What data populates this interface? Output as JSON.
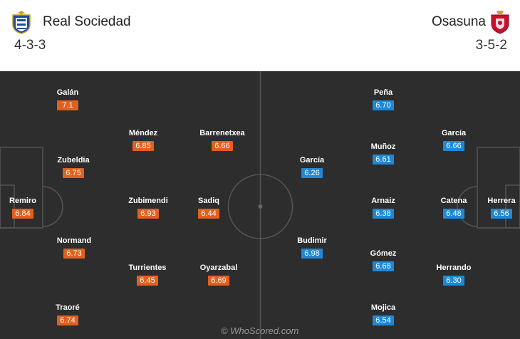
{
  "home": {
    "name": "Real Sociedad",
    "formation": "4-3-3",
    "crest_icon": "real-sociedad-crest-icon",
    "color": "#e0601f",
    "players": [
      {
        "name": "Galán",
        "rating": "7.1"
      },
      {
        "name": "Zubeldia",
        "rating": "6.75"
      },
      {
        "name": "Remiro",
        "rating": "6.84"
      },
      {
        "name": "Normand",
        "rating": "6.73"
      },
      {
        "name": "Traoré",
        "rating": "6.74"
      },
      {
        "name": "Méndez",
        "rating": "6.85"
      },
      {
        "name": "Zubimendi",
        "rating": "6.93"
      },
      {
        "name": "Turrientes",
        "rating": "6.45"
      },
      {
        "name": "Barrenetxea",
        "rating": "6.66"
      },
      {
        "name": "Sadiq",
        "rating": "6.44"
      },
      {
        "name": "Oyarzabal",
        "rating": "6.69"
      }
    ]
  },
  "away": {
    "name": "Osasuna",
    "formation": "3-5-2",
    "crest_icon": "osasuna-crest-icon",
    "color": "#1e88d8",
    "players": [
      {
        "name": "García",
        "rating": "6.26"
      },
      {
        "name": "Budimir",
        "rating": "6.98"
      },
      {
        "name": "Peña",
        "rating": "6.70"
      },
      {
        "name": "Muñoz",
        "rating": "6.61"
      },
      {
        "name": "Arnaiz",
        "rating": "6.38"
      },
      {
        "name": "Gómez",
        "rating": "6.68"
      },
      {
        "name": "Mojica",
        "rating": "6.54"
      },
      {
        "name": "García",
        "rating": "6.66"
      },
      {
        "name": "Catena",
        "rating": "6.48"
      },
      {
        "name": "Herrando",
        "rating": "6.30"
      },
      {
        "name": "Herrera",
        "rating": "6.56"
      }
    ]
  },
  "watermark": "© WhoScored.com",
  "pitch_color": "#2d2d2d",
  "line_color": "#555555"
}
